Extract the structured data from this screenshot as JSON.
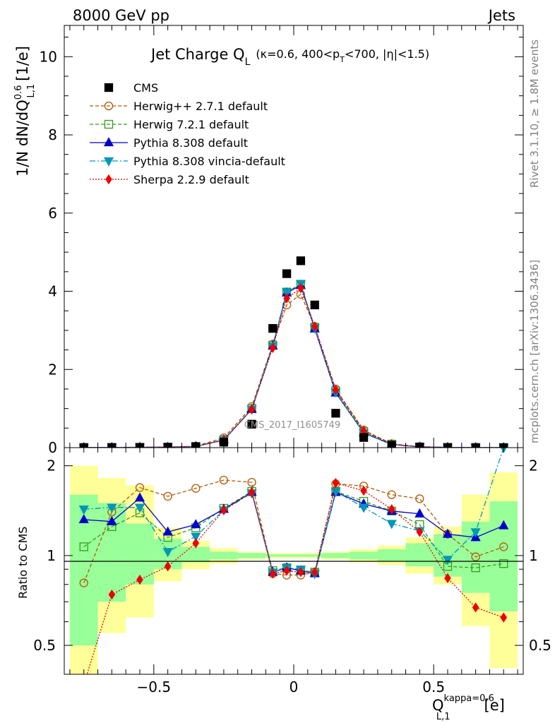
{
  "header": {
    "left": "8000 GeV pp",
    "right": "Jets",
    "side_top": "Rivet 3.1.10, ≥ 1.8M events",
    "side_bottom": "mcplots.cern.ch [arXiv:1306.3436]",
    "watermark": "CMS_2017_I1605749"
  },
  "colors": {
    "CMS": "#000000",
    "Herwig++": "#b35806",
    "Herwig7": "#2f9e1a",
    "Pythia": "#0000cc",
    "Vincia": "#0097b8",
    "Sherpa": "#ee0000",
    "band_inner": "#99ff99",
    "band_outer": "#ffff99"
  },
  "chart_data": [
    {
      "type": "scatter",
      "panel": "main",
      "title_main": "Jet Charge Q",
      "title_sub": "L",
      "title_params": "(κ=0.6, 400<p",
      "title_params_sub": "T",
      "title_params_end": "<700, |η|<1.5)",
      "ylabel": "1/N dN/dQ",
      "ylabel_sup": "0.6",
      "ylabel_sub": "L,1",
      "ylabel_unit": "[1/e]",
      "ylim": [
        0,
        10.8
      ],
      "xlim": [
        -0.82,
        0.82
      ],
      "yticks": [
        "0",
        "2",
        "4",
        "6",
        "8",
        "10"
      ],
      "x": [
        -0.75,
        -0.65,
        -0.55,
        -0.45,
        -0.35,
        -0.25,
        -0.15,
        -0.075,
        -0.025,
        0.025,
        0.075,
        0.15,
        0.25,
        0.35,
        0.45,
        0.55,
        0.65,
        0.75
      ],
      "series": [
        {
          "name": "CMS",
          "values": [
            0.002,
            0.004,
            0.006,
            0.01,
            0.025,
            0.14,
            0.6,
            3.05,
            4.45,
            4.78,
            3.65,
            0.88,
            0.26,
            0.06,
            0.015,
            0.005,
            0.002,
            0.001
          ]
        },
        {
          "name": "Herwig++ 2.7.1 default",
          "values": [
            0.002,
            0.006,
            0.01,
            0.016,
            0.04,
            0.25,
            1.05,
            2.65,
            3.65,
            3.92,
            3.1,
            1.5,
            0.45,
            0.1,
            0.025,
            0.006,
            0.002,
            0.001
          ]
        },
        {
          "name": "Herwig 7.2.1 default",
          "values": [
            0.002,
            0.005,
            0.008,
            0.012,
            0.03,
            0.2,
            1.0,
            2.62,
            3.98,
            4.18,
            3.08,
            1.45,
            0.41,
            0.09,
            0.02,
            0.005,
            0.002,
            0.001
          ]
        },
        {
          "name": "Pythia 8.308 default",
          "values": [
            0.003,
            0.005,
            0.009,
            0.012,
            0.03,
            0.2,
            0.98,
            2.6,
            3.96,
            4.15,
            3.04,
            1.4,
            0.38,
            0.08,
            0.02,
            0.006,
            0.002,
            0.001
          ]
        },
        {
          "name": "Pythia 8.308 vincia-default",
          "values": [
            0.003,
            0.006,
            0.008,
            0.01,
            0.03,
            0.19,
            0.98,
            2.6,
            3.98,
            4.19,
            3.06,
            1.42,
            0.37,
            0.08,
            0.018,
            0.005,
            0.002,
            0.002
          ]
        },
        {
          "name": "Sherpa 2.2.9 default",
          "values": [
            0.001,
            0.003,
            0.005,
            0.009,
            0.027,
            0.19,
            0.98,
            2.55,
            3.82,
            4.08,
            3.1,
            1.48,
            0.43,
            0.09,
            0.018,
            0.004,
            0.001,
            0.001
          ]
        }
      ]
    },
    {
      "type": "line",
      "panel": "ratio",
      "ylabel": "Ratio to CMS",
      "xlabel": "Q",
      "xlabel_sup": "kappa=0.6",
      "xlabel_sub": "L,1",
      "xlabel_unit": "[e]",
      "ylim": [
        0.4,
        2.3
      ],
      "log_y": true,
      "xlim": [
        -0.82,
        0.82
      ],
      "yticks": [
        "0.5",
        "1",
        "2"
      ],
      "xticks": [
        "−0.5",
        "0",
        "0.5"
      ],
      "bins": [
        [
          -0.8,
          -0.7
        ],
        [
          -0.7,
          -0.6
        ],
        [
          -0.6,
          -0.5
        ],
        [
          -0.5,
          -0.4
        ],
        [
          -0.4,
          -0.3
        ],
        [
          -0.3,
          -0.2
        ],
        [
          -0.2,
          -0.1
        ],
        [
          -0.1,
          -0.05
        ],
        [
          -0.05,
          0.0
        ],
        [
          0.0,
          0.05
        ],
        [
          0.05,
          0.1
        ],
        [
          0.1,
          0.2
        ],
        [
          0.2,
          0.3
        ],
        [
          0.3,
          0.4
        ],
        [
          0.4,
          0.5
        ],
        [
          0.5,
          0.6
        ],
        [
          0.6,
          0.7
        ],
        [
          0.7,
          0.8
        ]
      ],
      "band_inner": [
        [
          0.5,
          1.6
        ],
        [
          0.7,
          1.5
        ],
        [
          0.8,
          1.28
        ],
        [
          0.9,
          1.14
        ],
        [
          0.95,
          1.07
        ],
        [
          0.97,
          1.03
        ],
        [
          0.98,
          1.02
        ],
        [
          0.99,
          1.01
        ],
        [
          0.99,
          1.01
        ],
        [
          0.99,
          1.01
        ],
        [
          0.99,
          1.01
        ],
        [
          0.98,
          1.02
        ],
        [
          0.97,
          1.03
        ],
        [
          0.96,
          1.05
        ],
        [
          0.92,
          1.1
        ],
        [
          0.85,
          1.18
        ],
        [
          0.75,
          1.3
        ],
        [
          0.65,
          1.52
        ]
      ],
      "band_outer": [
        [
          0.4,
          2.0
        ],
        [
          0.55,
          1.82
        ],
        [
          0.62,
          1.72
        ],
        [
          0.82,
          1.24
        ],
        [
          0.9,
          1.12
        ],
        [
          0.94,
          1.06
        ],
        [
          0.97,
          1.03
        ],
        [
          0.98,
          1.02
        ],
        [
          0.98,
          1.02
        ],
        [
          0.98,
          1.02
        ],
        [
          0.98,
          1.02
        ],
        [
          0.97,
          1.03
        ],
        [
          0.95,
          1.05
        ],
        [
          0.93,
          1.08
        ],
        [
          0.87,
          1.15
        ],
        [
          0.8,
          1.25
        ],
        [
          0.58,
          1.6
        ],
        [
          0.42,
          1.9
        ]
      ],
      "x": [
        -0.75,
        -0.65,
        -0.55,
        -0.45,
        -0.35,
        -0.25,
        -0.15,
        -0.075,
        -0.025,
        0.025,
        0.075,
        0.15,
        0.25,
        0.35,
        0.45,
        0.55,
        0.65,
        0.75
      ],
      "series": [
        {
          "name": "Herwig++ 2.7.1 default",
          "values": [
            0.81,
            1.4,
            1.69,
            1.58,
            1.68,
            1.79,
            1.76,
            0.87,
            0.86,
            0.86,
            0.88,
            1.74,
            1.71,
            1.6,
            1.55,
            1.18,
            0.99,
            1.07
          ]
        },
        {
          "name": "Herwig 7.2.1 default",
          "values": [
            1.07,
            1.25,
            1.39,
            1.15,
            1.24,
            1.44,
            1.64,
            0.89,
            0.91,
            0.89,
            0.88,
            1.64,
            1.52,
            1.41,
            1.27,
            0.92,
            0.91,
            0.94
          ]
        },
        {
          "name": "Pythia 8.308 default",
          "values": [
            1.32,
            1.3,
            1.56,
            1.2,
            1.27,
            1.43,
            1.63,
            0.88,
            0.91,
            0.89,
            0.87,
            1.63,
            1.49,
            1.41,
            1.38,
            1.18,
            1.15,
            1.26
          ]
        },
        {
          "name": "Pythia 8.308 vincia-default",
          "values": [
            1.43,
            1.45,
            1.45,
            1.03,
            1.16,
            1.42,
            1.62,
            0.88,
            0.91,
            0.9,
            0.87,
            1.64,
            1.45,
            1.28,
            1.21,
            0.97,
            1.2,
            2.3
          ]
        },
        {
          "name": "Sherpa 2.2.9 default",
          "values": [
            0.37,
            0.74,
            0.83,
            0.92,
            1.1,
            1.42,
            1.63,
            0.87,
            0.89,
            0.88,
            0.88,
            1.75,
            1.65,
            1.43,
            1.2,
            0.84,
            0.67,
            0.62
          ]
        }
      ]
    }
  ]
}
